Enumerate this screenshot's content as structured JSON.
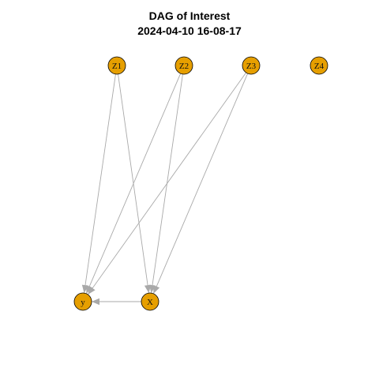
{
  "title": {
    "line1": "DAG of Interest",
    "line2": "2024-04-10 16-08-17"
  },
  "colors": {
    "node_fill": "#E69F00",
    "node_stroke": "#000000",
    "edge": "#A9A9A9",
    "background": "#FFFFFF"
  },
  "nodes": [
    {
      "id": "Z1",
      "label": "Z1"
    },
    {
      "id": "Z2",
      "label": "Z2"
    },
    {
      "id": "Z3",
      "label": "Z3"
    },
    {
      "id": "Z4",
      "label": "Z4"
    },
    {
      "id": "y",
      "label": "y"
    },
    {
      "id": "X",
      "label": "X"
    }
  ],
  "edges": [
    {
      "from": "Z1",
      "to": "y"
    },
    {
      "from": "Z1",
      "to": "X"
    },
    {
      "from": "Z2",
      "to": "y"
    },
    {
      "from": "Z2",
      "to": "X"
    },
    {
      "from": "Z3",
      "to": "y"
    },
    {
      "from": "Z3",
      "to": "X"
    },
    {
      "from": "X",
      "to": "y"
    }
  ]
}
